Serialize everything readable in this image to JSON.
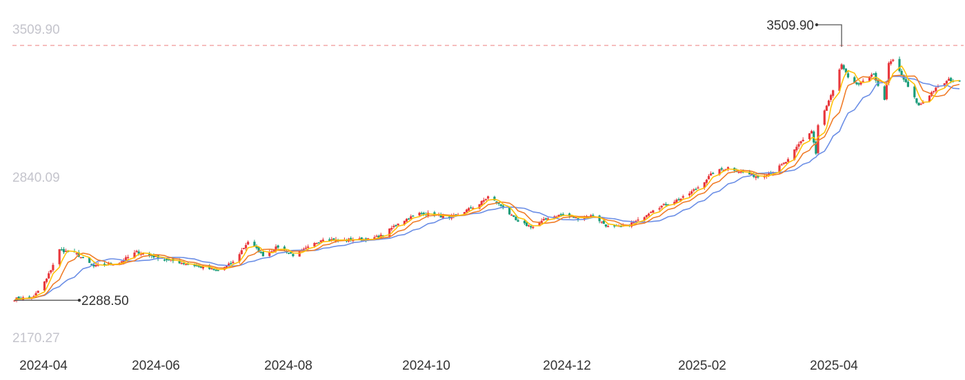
{
  "chart_data": {
    "type": "candlestick",
    "y_axis": {
      "labels": [
        "3509.90",
        "2840.09",
        "2170.27"
      ],
      "ylim": [
        2170.27,
        3509.9
      ]
    },
    "x_axis": {
      "labels": [
        "2024-04",
        "2024-06",
        "2024-08",
        "2024-10",
        "2024-12",
        "2025-02",
        "2025-04"
      ]
    },
    "reference_line": {
      "value": 3509.9,
      "style": "dashed",
      "color": "#f4a7a7"
    },
    "markers": [
      {
        "label": "3509.90",
        "date": "2025-04-22",
        "value": 3509.9
      },
      {
        "label": "2288.50",
        "date": "2024-04-01",
        "value": 2288.5
      }
    ],
    "candle_colors": {
      "up": "#e8383d",
      "down": "#1a9c7a"
    },
    "ma_colors": {
      "ma5": "#ffc107",
      "ma10": "#f07c28",
      "ma20": "#6b8ee6"
    },
    "close_anchors": [
      [
        "2024-04-01",
        2295
      ],
      [
        "2024-04-10",
        2305
      ],
      [
        "2024-04-16",
        2390
      ],
      [
        "2024-04-22",
        2530
      ],
      [
        "2024-04-30",
        2510
      ],
      [
        "2024-05-08",
        2450
      ],
      [
        "2024-05-20",
        2470
      ],
      [
        "2024-05-28",
        2520
      ],
      [
        "2024-06-10",
        2485
      ],
      [
        "2024-06-24",
        2455
      ],
      [
        "2024-07-05",
        2430
      ],
      [
        "2024-07-12",
        2470
      ],
      [
        "2024-07-19",
        2570
      ],
      [
        "2024-07-26",
        2505
      ],
      [
        "2024-08-02",
        2545
      ],
      [
        "2024-08-09",
        2505
      ],
      [
        "2024-08-16",
        2540
      ],
      [
        "2024-08-23",
        2585
      ],
      [
        "2024-08-30",
        2575
      ],
      [
        "2024-09-06",
        2580
      ],
      [
        "2024-09-13",
        2580
      ],
      [
        "2024-09-20",
        2600
      ],
      [
        "2024-09-27",
        2660
      ],
      [
        "2024-10-07",
        2705
      ],
      [
        "2024-10-14",
        2700
      ],
      [
        "2024-10-21",
        2680
      ],
      [
        "2024-10-28",
        2715
      ],
      [
        "2024-11-04",
        2750
      ],
      [
        "2024-11-08",
        2785
      ],
      [
        "2024-11-15",
        2735
      ],
      [
        "2024-11-22",
        2660
      ],
      [
        "2024-11-29",
        2640
      ],
      [
        "2024-12-06",
        2685
      ],
      [
        "2024-12-13",
        2700
      ],
      [
        "2024-12-20",
        2680
      ],
      [
        "2024-12-27",
        2695
      ],
      [
        "2025-01-03",
        2640
      ],
      [
        "2025-01-10",
        2640
      ],
      [
        "2025-01-17",
        2670
      ],
      [
        "2025-01-24",
        2725
      ],
      [
        "2025-02-07",
        2780
      ],
      [
        "2025-02-14",
        2830
      ],
      [
        "2025-02-21",
        2900
      ],
      [
        "2025-02-28",
        2925
      ],
      [
        "2025-03-07",
        2900
      ],
      [
        "2025-03-14",
        2880
      ],
      [
        "2025-03-21",
        2905
      ],
      [
        "2025-03-28",
        2960
      ],
      [
        "2025-04-03",
        3050
      ],
      [
        "2025-04-08",
        3100
      ],
      [
        "2025-04-10",
        2990
      ],
      [
        "2025-04-11",
        3125
      ],
      [
        "2025-04-18",
        3290
      ],
      [
        "2025-04-22",
        3420
      ],
      [
        "2025-04-25",
        3350
      ],
      [
        "2025-04-30",
        3325
      ],
      [
        "2025-05-07",
        3370
      ],
      [
        "2025-05-12",
        3245
      ],
      [
        "2025-05-14",
        3420
      ],
      [
        "2025-05-16",
        3440
      ],
      [
        "2025-05-23",
        3310
      ],
      [
        "2025-05-28",
        3220
      ],
      [
        "2025-06-04",
        3295
      ],
      [
        "2025-06-11",
        3345
      ],
      [
        "2025-06-16",
        3335
      ]
    ]
  }
}
